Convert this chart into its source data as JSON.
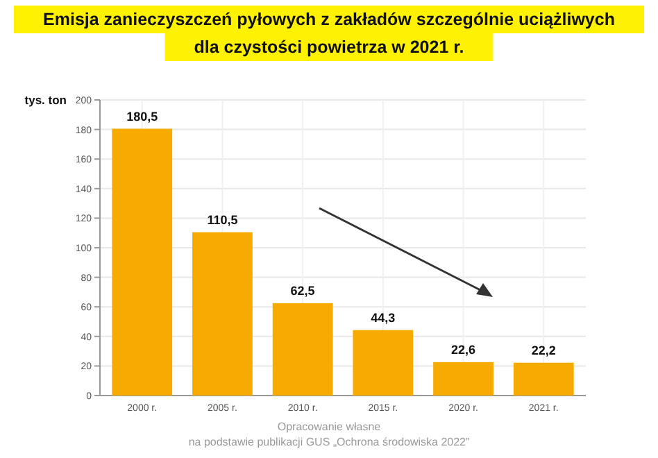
{
  "chart_data": {
    "type": "bar",
    "title": "Emisja zanieczyszczeń pyłowych z zakładów szczególnie uciążliwych dla czystości powietrza w 2021 r.",
    "ylabel": "tys. ton",
    "categories": [
      "2000 r.",
      "2005 r.",
      "2010 r.",
      "2015 r.",
      "2020 r.",
      "2021 r."
    ],
    "values": [
      180.5,
      110.5,
      62.5,
      44.3,
      22.6,
      22.2
    ],
    "value_labels": [
      "180,5",
      "110,5",
      "62,5",
      "44,3",
      "22,6",
      "22,2"
    ],
    "color": "#f7aa00",
    "ylim": [
      0,
      200
    ],
    "yticks": [
      0,
      20,
      40,
      60,
      80,
      100,
      120,
      140,
      160,
      180,
      200
    ],
    "grid": true,
    "annotations": [
      "Opracowanie własne",
      "na podstawie publikacji GUS „Ochrona środowiska 2022”"
    ]
  }
}
